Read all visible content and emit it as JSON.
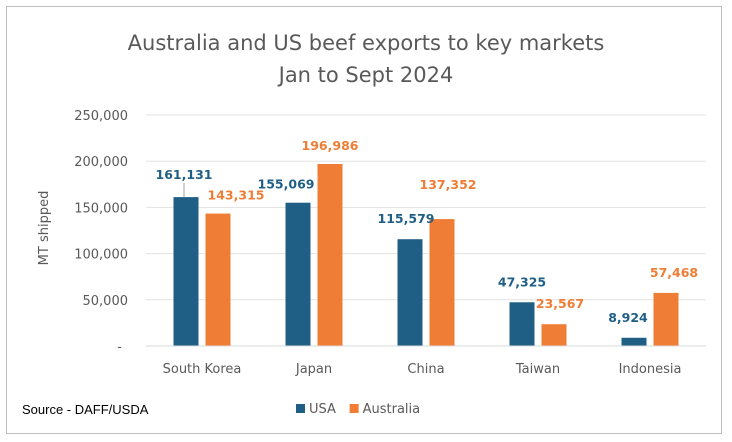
{
  "source_note": "Source - DAFF/USDA",
  "chart_data": {
    "type": "bar",
    "title": "Australia and US  beef exports to key markets",
    "subtitle": "Jan to Sept 2024",
    "ylabel": "MT shipped",
    "xlabel": "",
    "ylim": [
      0,
      250000
    ],
    "yticks": [
      {
        "value": 0,
        "label": "-"
      },
      {
        "value": 50000,
        "label": "50,000"
      },
      {
        "value": 100000,
        "label": "100,000"
      },
      {
        "value": 150000,
        "label": "150,000"
      },
      {
        "value": 200000,
        "label": "200,000"
      },
      {
        "value": 250000,
        "label": "250,000"
      }
    ],
    "grid": true,
    "legend_position": "bottom",
    "categories": [
      "South Korea",
      "Japan",
      "China",
      "Taiwan",
      "Indonesia"
    ],
    "series": [
      {
        "name": "USA",
        "color": "#1f5f86",
        "values": [
          161131,
          155069,
          115579,
          47325,
          8924
        ],
        "labels": [
          "161,131",
          "155,069",
          "115,579",
          "47,325",
          "8,924"
        ]
      },
      {
        "name": "Australia",
        "color": "#ef7d36",
        "values": [
          143315,
          196986,
          137352,
          23567,
          57468
        ],
        "labels": [
          "143,315",
          "196,986",
          "137,352",
          "23,567",
          "57,468"
        ]
      }
    ]
  }
}
